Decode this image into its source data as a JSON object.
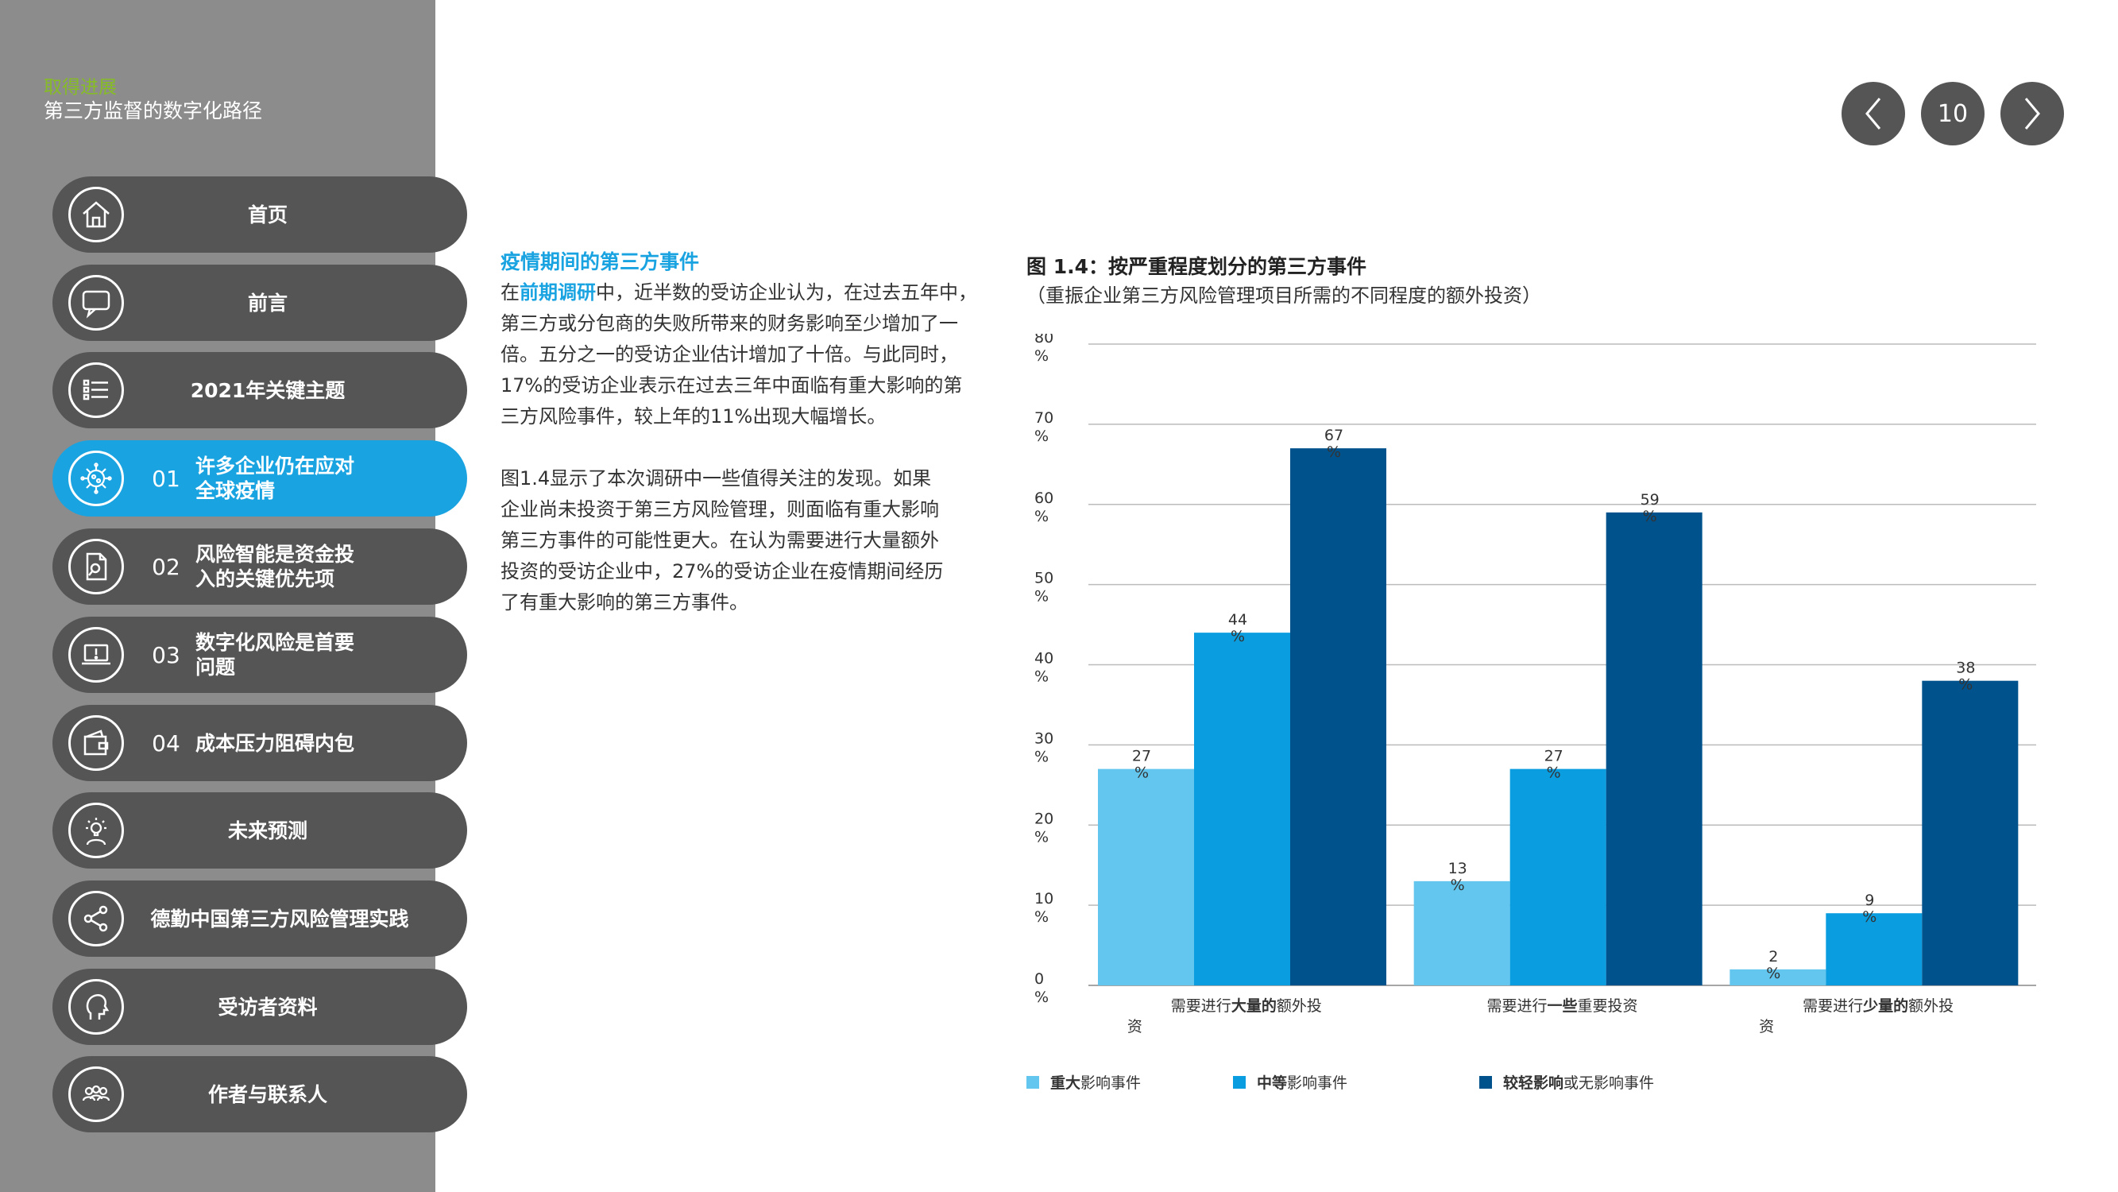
{
  "header": {
    "supertitle": "取得进展",
    "title": "第三方监督的数字化路径",
    "page_number": "10"
  },
  "nav": {
    "items": [
      {
        "num": "",
        "label": "首页",
        "icon": "home-icon"
      },
      {
        "num": "",
        "label": "前言",
        "icon": "chat-bubble-icon"
      },
      {
        "num": "",
        "label": "2021年关键主题",
        "icon": "list-icon"
      },
      {
        "num": "01",
        "label_line1": "许多企业仍在应对",
        "label_line2": "全球疫情",
        "icon": "virus-icon",
        "active": true
      },
      {
        "num": "02",
        "label_line1": "风险智能是资金投",
        "label_line2": "入的关键优先项",
        "icon": "document-search-icon"
      },
      {
        "num": "03",
        "label_line1": "数字化风险是首要",
        "label_line2": "问题",
        "icon": "laptop-alert-icon"
      },
      {
        "num": "04",
        "label": "成本压力阻碍内包",
        "icon": "wallet-icon"
      },
      {
        "num": "",
        "label": "未来预测",
        "icon": "lightbulb-person-icon"
      },
      {
        "num": "",
        "label": "德勤中国第三方风险管理实践",
        "icon": "share-icon"
      },
      {
        "num": "",
        "label": "受访者资料",
        "icon": "head-profile-icon"
      },
      {
        "num": "",
        "label": "作者与联系人",
        "icon": "people-group-icon"
      }
    ]
  },
  "article": {
    "title": "疫情期间的第三方事件",
    "p1_prefix": "在",
    "p1_link": "前期调研",
    "p1_l1": "中，近半数的受访企业认为，在过去五年中，",
    "p1_l2": "第三方或分包商的失败所带来的财务影响至少增加了一",
    "p1_l3": "倍。五分之一的受访企业估计增加了十倍。与此同时，",
    "p1_l4": "17%的受访企业表示在过去三年中面临有重大影响的第",
    "p1_l5": "三方风险事件，较上年的11%出现大幅增长。",
    "p2_l1": "图1.4显示了本次调研中一些值得关注的发现。如果",
    "p2_l2": "企业尚未投资于第三方风险管理，则面临有重大影响",
    "p2_l3": "第三方事件的可能性更大。在认为需要进行大量额外",
    "p2_l4": "投资的受访企业中，27%的受访企业在疫情期间经历",
    "p2_l5": "了有重大影响的第三方事件。"
  },
  "figure": {
    "title": "图 1.4：按严重程度划分的第三方事件",
    "subtitle": "（重振企业第三方风险管理项目所需的不同程度的额外投资）"
  },
  "chart_data": {
    "type": "bar",
    "categories": [
      [
        "需要进行",
        "大量的",
        "额外投",
        "资"
      ],
      [
        "需要进行",
        "一些",
        "重要投资",
        ""
      ],
      [
        "需要进行",
        "少量的",
        "额外投",
        "资"
      ]
    ],
    "series": [
      {
        "name_bold": "重大",
        "name_rest": "影响事件",
        "values": [
          27,
          13,
          2
        ],
        "color": "#62c6ee"
      },
      {
        "name_bold": "中等",
        "name_rest": "影响事件",
        "values": [
          44,
          27,
          9
        ],
        "color": "#0a9de0"
      },
      {
        "name_bold": "较轻影响",
        "name_rest": "或无影响事件",
        "values": [
          67,
          59,
          38
        ],
        "color": "#00528c"
      }
    ],
    "ylim": [
      0,
      80
    ],
    "yticks": [
      0,
      10,
      20,
      30,
      40,
      50,
      60,
      70,
      80
    ],
    "unit": "%",
    "grid": true,
    "legend": "bottom"
  }
}
